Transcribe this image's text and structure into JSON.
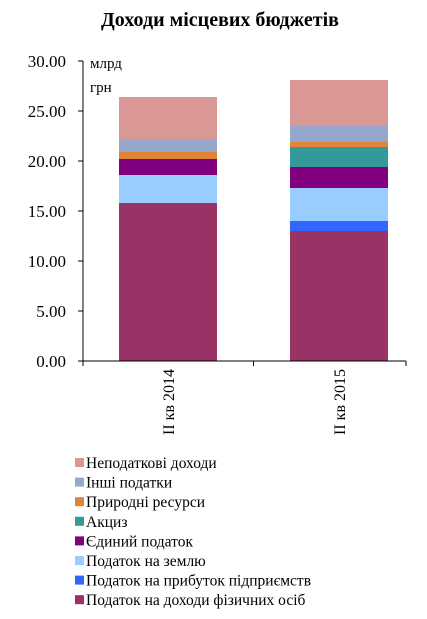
{
  "chart_data": {
    "type": "bar",
    "stacked": true,
    "title": "Доходи місцевих бюджетів",
    "unit_label_line1": "млрд",
    "unit_label_line2": "грн",
    "ylim": [
      0,
      30
    ],
    "yticks": [
      "0.00",
      "5.00",
      "10.00",
      "15.00",
      "20.00",
      "25.00",
      "30.00"
    ],
    "ytick_values": [
      0,
      5,
      10,
      15,
      20,
      25,
      30
    ],
    "grid": false,
    "legend_position": "bottom",
    "categories": [
      "II кв 2014",
      "II кв 2015"
    ],
    "series": [
      {
        "name": "Податок на доходи фізичних осіб",
        "color": "#993366",
        "values": [
          15.8,
          13.0
        ]
      },
      {
        "name": "Податок на прибуток підприємств",
        "color": "#3366ff",
        "values": [
          0.0,
          1.0
        ]
      },
      {
        "name": "Податок на землю",
        "color": "#99ccff",
        "values": [
          2.8,
          3.3
        ]
      },
      {
        "name": "Єдиний податок",
        "color": "#800080",
        "values": [
          1.6,
          2.1
        ]
      },
      {
        "name": "Акциз",
        "color": "#339999",
        "values": [
          0.0,
          2.0
        ]
      },
      {
        "name": "Природні ресурси",
        "color": "#e0843a",
        "values": [
          0.7,
          0.5
        ]
      },
      {
        "name": "Інші податки",
        "color": "#95a8cc",
        "values": [
          1.3,
          1.6
        ]
      },
      {
        "name": "Неподаткові доходи",
        "color": "#d99795",
        "values": [
          4.2,
          4.6
        ]
      }
    ]
  }
}
